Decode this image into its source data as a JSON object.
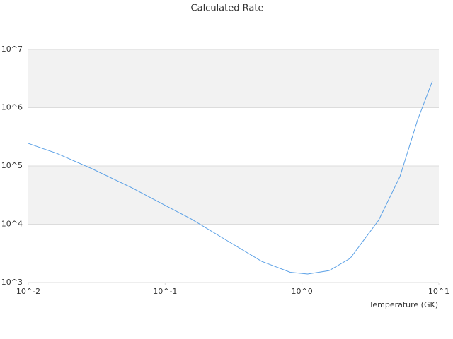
{
  "chart_data": {
    "type": "line",
    "title": "Calculated Rate",
    "x_label": "Temperature (GK)",
    "xscale": "log",
    "yscale": "log",
    "grid": true,
    "xlim": [
      0.01,
      10
    ],
    "ylim": [
      1000,
      10000000
    ],
    "xticks": [
      {
        "value": 0.01,
        "label": "10^-2"
      },
      {
        "value": 0.1,
        "label": "10^-1"
      },
      {
        "value": 1,
        "label": "10^0"
      },
      {
        "value": 10,
        "label": "10^1"
      }
    ],
    "yticks": [
      {
        "value": 1000,
        "label": "10^3"
      },
      {
        "value": 10000,
        "label": "10^4"
      },
      {
        "value": 100000,
        "label": "10^5"
      },
      {
        "value": 1000000,
        "label": "10^6"
      },
      {
        "value": 10000000,
        "label": "10^7"
      }
    ],
    "x": [
      0.01,
      0.0127,
      0.0161,
      0.0285,
      0.0562,
      0.0984,
      0.155,
      0.281,
      0.509,
      0.82,
      1.1,
      1.58,
      2.25,
      3.63,
      5.2,
      7.0,
      8.97
    ],
    "series": [
      {
        "color": "#5aa0e6",
        "values": [
          244000,
          200000,
          165000,
          92000,
          43000,
          21500,
          12300,
          5300,
          2300,
          1500,
          1400,
          1600,
          2600,
          11700,
          66000,
          620000,
          2850000
        ]
      }
    ]
  }
}
